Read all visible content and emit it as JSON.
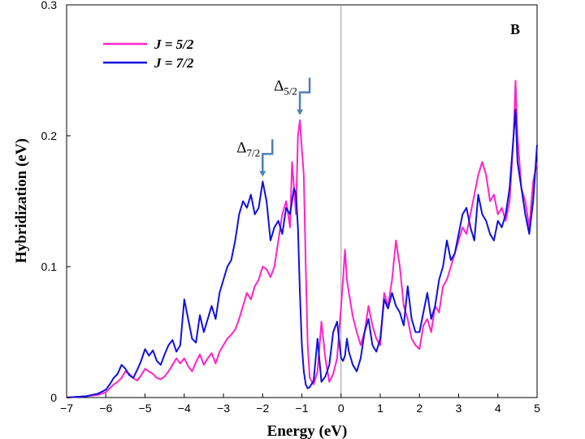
{
  "chart_data": {
    "type": "line",
    "title": "",
    "panel_label": "B",
    "xlabel": "Energy (eV)",
    "ylabel": "Hybridization (eV)",
    "xlim": [
      -7,
      5
    ],
    "ylim": [
      0,
      0.3
    ],
    "xticks": [
      -7,
      -6,
      -5,
      -4,
      -3,
      -2,
      -1,
      0,
      1,
      2,
      3,
      4,
      5
    ],
    "xtick_labels": [
      "−7",
      "−6",
      "−5",
      "−4",
      "−3",
      "−2",
      "−1",
      "0",
      "1",
      "2",
      "3",
      "4",
      "5"
    ],
    "yticks": [
      0,
      0.1,
      0.2,
      0.3
    ],
    "ytick_labels": [
      "0",
      "0.1",
      "0.2",
      "0.3"
    ],
    "grid": false,
    "vertical_reference_line_x": 0,
    "legend_position": "top-left",
    "series": [
      {
        "name": "J = 5/2",
        "color": "#ff22cc",
        "x": [
          -7,
          -6.5,
          -6.2,
          -6.0,
          -5.9,
          -5.8,
          -5.7,
          -5.6,
          -5.5,
          -5.4,
          -5.3,
          -5.2,
          -5.1,
          -5.0,
          -4.9,
          -4.8,
          -4.7,
          -4.6,
          -4.5,
          -4.4,
          -4.3,
          -4.2,
          -4.1,
          -4.0,
          -3.9,
          -3.8,
          -3.7,
          -3.6,
          -3.5,
          -3.4,
          -3.3,
          -3.2,
          -3.1,
          -3.0,
          -2.9,
          -2.8,
          -2.7,
          -2.6,
          -2.5,
          -2.4,
          -2.3,
          -2.2,
          -2.1,
          -2.0,
          -1.9,
          -1.8,
          -1.7,
          -1.6,
          -1.5,
          -1.4,
          -1.3,
          -1.25,
          -1.2,
          -1.15,
          -1.1,
          -1.05,
          -1.0,
          -0.95,
          -0.9,
          -0.85,
          -0.8,
          -0.7,
          -0.6,
          -0.5,
          -0.4,
          -0.3,
          -0.2,
          -0.1,
          0.0,
          0.05,
          0.1,
          0.15,
          0.2,
          0.3,
          0.4,
          0.5,
          0.6,
          0.7,
          0.8,
          0.9,
          1.0,
          1.1,
          1.2,
          1.3,
          1.4,
          1.5,
          1.6,
          1.7,
          1.8,
          1.9,
          2.0,
          2.1,
          2.2,
          2.3,
          2.4,
          2.5,
          2.6,
          2.7,
          2.8,
          2.9,
          3.0,
          3.1,
          3.2,
          3.3,
          3.4,
          3.5,
          3.6,
          3.7,
          3.8,
          3.9,
          4.0,
          4.1,
          4.2,
          4.3,
          4.4,
          4.45,
          4.5,
          4.6,
          4.7,
          4.8,
          4.9,
          5.0
        ],
        "y": [
          0.0,
          0.001,
          0.002,
          0.004,
          0.007,
          0.01,
          0.012,
          0.015,
          0.02,
          0.018,
          0.015,
          0.013,
          0.017,
          0.022,
          0.02,
          0.018,
          0.015,
          0.014,
          0.016,
          0.02,
          0.025,
          0.03,
          0.026,
          0.03,
          0.024,
          0.02,
          0.027,
          0.033,
          0.025,
          0.03,
          0.034,
          0.026,
          0.035,
          0.04,
          0.045,
          0.048,
          0.052,
          0.06,
          0.07,
          0.08,
          0.075,
          0.085,
          0.09,
          0.1,
          0.098,
          0.092,
          0.1,
          0.12,
          0.14,
          0.15,
          0.13,
          0.18,
          0.16,
          0.14,
          0.2,
          0.212,
          0.19,
          0.17,
          0.1,
          0.04,
          0.015,
          0.01,
          0.02,
          0.058,
          0.03,
          0.012,
          0.018,
          0.03,
          0.07,
          0.09,
          0.113,
          0.09,
          0.08,
          0.062,
          0.05,
          0.04,
          0.05,
          0.07,
          0.055,
          0.045,
          0.04,
          0.08,
          0.07,
          0.09,
          0.12,
          0.1,
          0.07,
          0.06,
          0.045,
          0.04,
          0.037,
          0.055,
          0.06,
          0.05,
          0.07,
          0.065,
          0.085,
          0.09,
          0.1,
          0.11,
          0.12,
          0.13,
          0.125,
          0.14,
          0.155,
          0.17,
          0.18,
          0.17,
          0.15,
          0.155,
          0.14,
          0.145,
          0.135,
          0.15,
          0.2,
          0.242,
          0.2,
          0.16,
          0.15,
          0.13,
          0.165,
          0.18
        ]
      },
      {
        "name": "J = 7/2",
        "color": "#1111dd",
        "x": [
          -7,
          -6.5,
          -6.2,
          -6.0,
          -5.9,
          -5.8,
          -5.7,
          -5.6,
          -5.5,
          -5.4,
          -5.3,
          -5.2,
          -5.1,
          -5.0,
          -4.9,
          -4.8,
          -4.7,
          -4.6,
          -4.5,
          -4.4,
          -4.3,
          -4.2,
          -4.1,
          -4.0,
          -3.9,
          -3.8,
          -3.7,
          -3.6,
          -3.5,
          -3.4,
          -3.3,
          -3.2,
          -3.1,
          -3.0,
          -2.9,
          -2.8,
          -2.7,
          -2.6,
          -2.5,
          -2.4,
          -2.3,
          -2.2,
          -2.1,
          -2.0,
          -1.9,
          -1.8,
          -1.7,
          -1.6,
          -1.5,
          -1.4,
          -1.3,
          -1.25,
          -1.2,
          -1.15,
          -1.1,
          -1.05,
          -1.0,
          -0.95,
          -0.9,
          -0.85,
          -0.8,
          -0.7,
          -0.6,
          -0.5,
          -0.4,
          -0.3,
          -0.2,
          -0.1,
          0.0,
          0.05,
          0.1,
          0.15,
          0.2,
          0.3,
          0.4,
          0.5,
          0.6,
          0.7,
          0.8,
          0.9,
          1.0,
          1.1,
          1.2,
          1.3,
          1.4,
          1.5,
          1.6,
          1.7,
          1.8,
          1.9,
          2.0,
          2.1,
          2.2,
          2.3,
          2.4,
          2.5,
          2.6,
          2.7,
          2.8,
          2.9,
          3.0,
          3.1,
          3.2,
          3.3,
          3.4,
          3.5,
          3.6,
          3.7,
          3.8,
          3.9,
          4.0,
          4.1,
          4.2,
          4.3,
          4.4,
          4.45,
          4.5,
          4.6,
          4.7,
          4.8,
          4.9,
          5.0
        ],
        "y": [
          0.0,
          0.001,
          0.003,
          0.006,
          0.01,
          0.015,
          0.018,
          0.025,
          0.022,
          0.017,
          0.015,
          0.021,
          0.028,
          0.037,
          0.032,
          0.036,
          0.028,
          0.025,
          0.033,
          0.04,
          0.044,
          0.035,
          0.04,
          0.075,
          0.06,
          0.045,
          0.042,
          0.063,
          0.05,
          0.06,
          0.07,
          0.06,
          0.08,
          0.09,
          0.1,
          0.105,
          0.12,
          0.14,
          0.15,
          0.145,
          0.155,
          0.14,
          0.145,
          0.165,
          0.15,
          0.12,
          0.13,
          0.135,
          0.125,
          0.145,
          0.14,
          0.15,
          0.16,
          0.155,
          0.13,
          0.08,
          0.04,
          0.02,
          0.01,
          0.007,
          0.008,
          0.013,
          0.045,
          0.012,
          0.016,
          0.025,
          0.05,
          0.058,
          0.03,
          0.028,
          0.032,
          0.045,
          0.035,
          0.025,
          0.02,
          0.03,
          0.05,
          0.06,
          0.04,
          0.035,
          0.045,
          0.075,
          0.068,
          0.08,
          0.07,
          0.065,
          0.055,
          0.085,
          0.06,
          0.05,
          0.05,
          0.065,
          0.08,
          0.06,
          0.07,
          0.09,
          0.1,
          0.12,
          0.105,
          0.11,
          0.125,
          0.14,
          0.145,
          0.13,
          0.12,
          0.155,
          0.14,
          0.135,
          0.125,
          0.12,
          0.135,
          0.13,
          0.14,
          0.16,
          0.2,
          0.22,
          0.18,
          0.16,
          0.14,
          0.125,
          0.15,
          0.193
        ]
      }
    ],
    "annotations": [
      {
        "main": "Δ",
        "sub": "5/2",
        "x": -1.05,
        "y": 0.212
      },
      {
        "main": "Δ",
        "sub": "7/2",
        "x": -2.0,
        "y": 0.165
      }
    ]
  }
}
